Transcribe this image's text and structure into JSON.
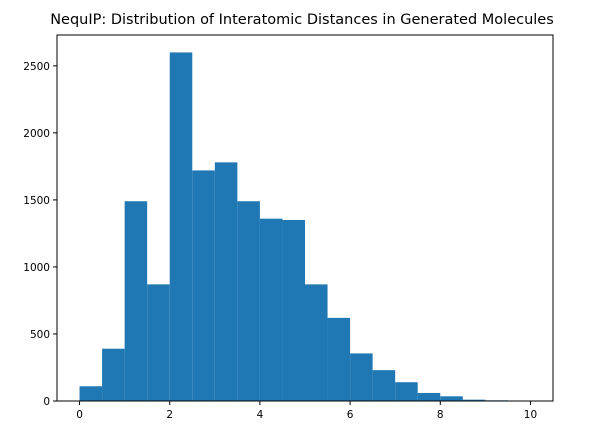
{
  "chart_data": {
    "type": "bar",
    "title": "NequIP: Distribution of Interatomic Distances in Generated Molecules",
    "xlabel": "",
    "ylabel": "",
    "bar_color": "#1f77b4",
    "bin_edges": [
      0,
      0.5,
      1,
      1.5,
      2,
      2.5,
      3,
      3.5,
      4,
      4.5,
      5,
      5.5,
      6,
      6.5,
      7,
      7.5,
      8,
      8.5,
      9,
      9.5,
      10
    ],
    "values": [
      110,
      390,
      1490,
      870,
      2600,
      1720,
      1780,
      1490,
      1360,
      1350,
      870,
      620,
      355,
      230,
      140,
      60,
      35,
      10,
      5,
      3
    ],
    "xlim": [
      -0.5,
      10.5
    ],
    "ylim": [
      0,
      2730
    ],
    "x_ticks": [
      0,
      2,
      4,
      6,
      8,
      10
    ],
    "x_tick_labels": [
      "0",
      "2",
      "4",
      "6",
      "8",
      "10"
    ],
    "y_ticks": [
      0,
      500,
      1000,
      1500,
      2000,
      2500
    ],
    "y_tick_labels": [
      "0",
      "500",
      "1000",
      "1500",
      "2000",
      "2500"
    ],
    "grid": false,
    "legend": "none"
  }
}
